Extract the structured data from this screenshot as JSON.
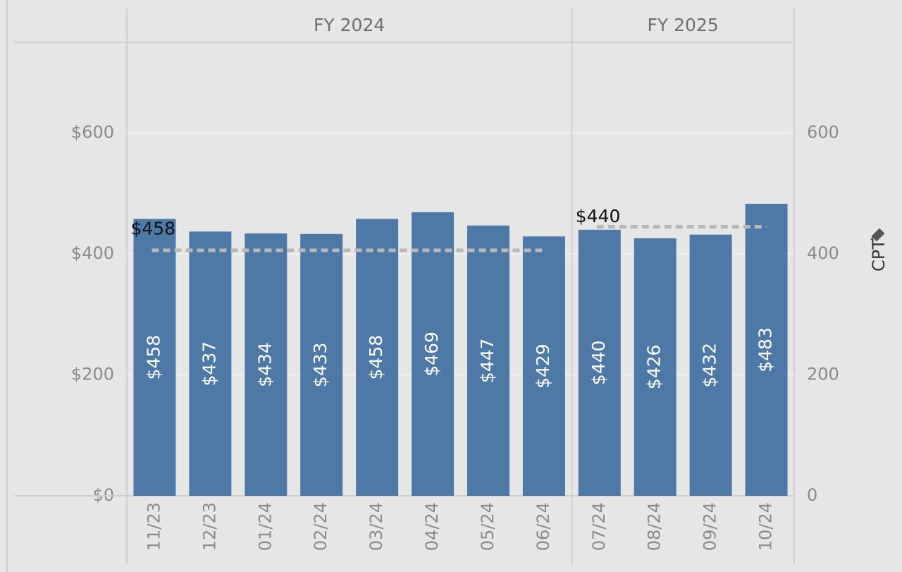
{
  "chart_data": {
    "type": "bar",
    "categories": [
      "11/23",
      "12/23",
      "01/24",
      "02/24",
      "03/24",
      "04/24",
      "05/24",
      "06/24",
      "07/24",
      "08/24",
      "09/24",
      "10/24"
    ],
    "series": [
      {
        "color": "#4e79a7",
        "values": [
          458,
          437,
          434,
          433,
          458,
          469,
          447,
          429,
          440,
          426,
          432,
          483
        ],
        "value_labels": [
          "$458",
          "$437",
          "$434",
          "$433",
          "$458",
          "$469",
          "$447",
          "$429",
          "$440",
          "$426",
          "$432",
          "$483"
        ]
      }
    ],
    "groups": [
      {
        "name": "FY 2024",
        "from": "11/23",
        "to": "06/24"
      },
      {
        "name": "FY 2025",
        "from": "07/24",
        "to": "10/24"
      }
    ],
    "reference_lines": [
      {
        "value": 406,
        "from": "11/23",
        "to": "06/24"
      },
      {
        "value": 445,
        "from": "07/24",
        "to": "10/24"
      }
    ],
    "annotations": [
      {
        "label": "$458",
        "value": 458,
        "x": "11/23"
      },
      {
        "label": "$440",
        "value": 440,
        "x": "07/24"
      }
    ],
    "ylim": [
      0,
      750
    ],
    "yticks": [
      {
        "value": 0,
        "label": "$0"
      },
      {
        "value": 200,
        "label": "$200"
      },
      {
        "value": 400,
        "label": "$400"
      },
      {
        "value": 600,
        "label": "$600"
      }
    ],
    "y2lim": [
      0,
      750
    ],
    "y2ticks": [
      0,
      200,
      400,
      600
    ],
    "y2label": "CPT",
    "grid": true
  }
}
